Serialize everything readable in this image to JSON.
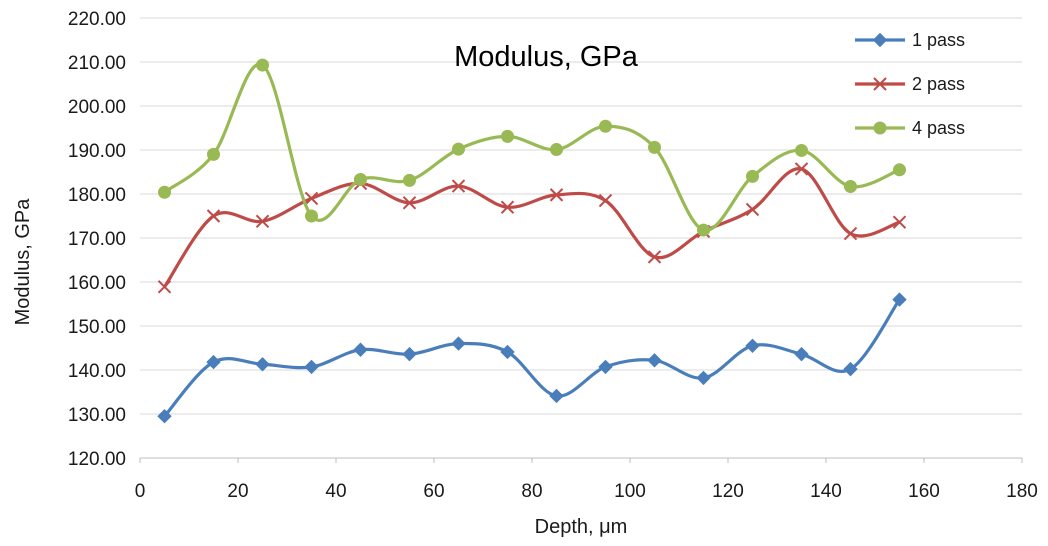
{
  "chart_data": {
    "type": "line",
    "title": "Modulus, GPa",
    "xlabel": "Depth, μm",
    "ylabel": "Modulus, GPa",
    "xlim": [
      0,
      180
    ],
    "ylim": [
      120,
      220
    ],
    "x_ticks": [
      "0",
      "20",
      "40",
      "60",
      "80",
      "100",
      "120",
      "140",
      "160",
      "180"
    ],
    "y_ticks": [
      "120.00",
      "130.00",
      "140.00",
      "150.00",
      "160.00",
      "170.00",
      "180.00",
      "190.00",
      "200.00",
      "210.00",
      "220.00"
    ],
    "grid": "horizontal",
    "legend_position": "top-right",
    "x": [
      5,
      15,
      25,
      35,
      45,
      55,
      65,
      75,
      85,
      95,
      105,
      115,
      125,
      135,
      145,
      155
    ],
    "series": [
      {
        "name": "1 pass",
        "color": "#4a7ebb",
        "marker": "diamond",
        "values": [
          129.5,
          141.8,
          141.3,
          140.7,
          144.6,
          143.6,
          146.0,
          144.1,
          134.1,
          140.7,
          142.2,
          138.2,
          145.5,
          143.6,
          140.2,
          156.0
        ]
      },
      {
        "name": "2 pass",
        "color": "#be4b48",
        "marker": "x",
        "values": [
          158.9,
          175.0,
          173.8,
          179.0,
          182.4,
          178.0,
          181.8,
          177.0,
          179.8,
          178.5,
          165.7,
          171.5,
          176.5,
          185.7,
          171.0,
          173.6
        ]
      },
      {
        "name": "4 pass",
        "color": "#98b954",
        "marker": "circle",
        "values": [
          180.4,
          189.0,
          209.3,
          175.0,
          183.3,
          183.1,
          190.2,
          193.1,
          190.1,
          195.4,
          190.6,
          171.8,
          184.0,
          189.9,
          181.7,
          185.5
        ]
      }
    ]
  }
}
